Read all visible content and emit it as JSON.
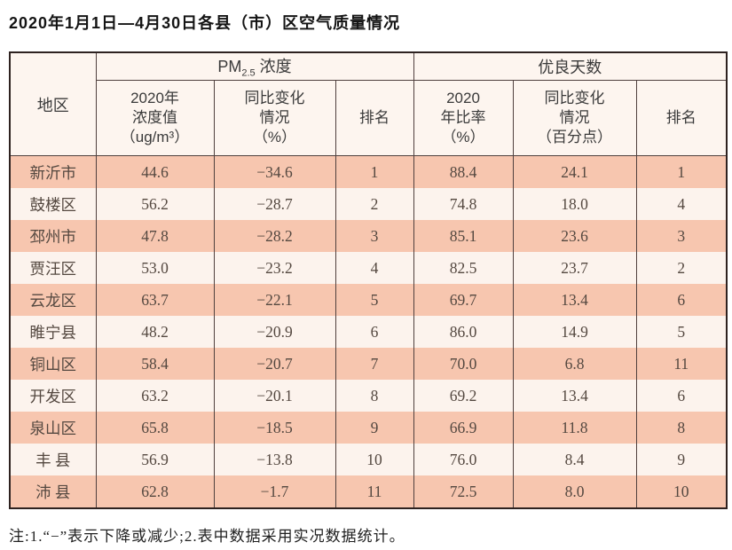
{
  "title": "2020年1月1日—4月30日各县（市）区空气质量情况",
  "table": {
    "header": {
      "region": "地区",
      "pm25": {
        "prefix": "PM",
        "sub": "2.5",
        "suffix": " 浓度"
      },
      "good_days": "优良天数",
      "pm25_value": "2020年\n浓度值\n（ug/m³）",
      "pm25_change": "同比变化\n情况\n（%）",
      "pm25_rank": "排名",
      "days_ratio": "2020\n年比率\n（%）",
      "days_change": "同比变化\n情况\n（百分点）",
      "days_rank": "排名"
    },
    "rows": [
      [
        "新沂市",
        "44.6",
        "−34.6",
        "1",
        "88.4",
        "24.1",
        "1"
      ],
      [
        "鼓楼区",
        "56.2",
        "−28.7",
        "2",
        "74.8",
        "18.0",
        "4"
      ],
      [
        "邳州市",
        "47.8",
        "−28.2",
        "3",
        "85.1",
        "23.6",
        "3"
      ],
      [
        "贾汪区",
        "53.0",
        "−23.2",
        "4",
        "82.5",
        "23.7",
        "2"
      ],
      [
        "云龙区",
        "63.7",
        "−22.1",
        "5",
        "69.7",
        "13.4",
        "6"
      ],
      [
        "睢宁县",
        "48.2",
        "−20.9",
        "6",
        "86.0",
        "14.9",
        "5"
      ],
      [
        "铜山区",
        "58.4",
        "−20.7",
        "7",
        "70.0",
        "6.8",
        "11"
      ],
      [
        "开发区",
        "63.2",
        "−20.1",
        "8",
        "69.2",
        "13.4",
        "6"
      ],
      [
        "泉山区",
        "65.8",
        "−18.5",
        "9",
        "66.9",
        "11.8",
        "8"
      ],
      [
        "丰 县",
        "56.9",
        "−13.8",
        "10",
        "76.0",
        "8.4",
        "9"
      ],
      [
        "沛 县",
        "62.8",
        "−1.7",
        "11",
        "72.5",
        "8.0",
        "10"
      ]
    ]
  },
  "note": "注:1.“−”表示下降或减少;2.表中数据采用实况数据统计。",
  "colors": {
    "row_odd": "#f7c6af",
    "row_even": "#fcf3ed",
    "header_bg": "#fdf5ef",
    "border_outer": "#2e2220",
    "border_inner": "#50403e"
  },
  "chart_data": {
    "type": "table",
    "title": "2020年1月1日—4月30日各县（市）区空气质量情况",
    "column_groups": [
      "PM2.5浓度",
      "优良天数"
    ],
    "columns": [
      "地区",
      "PM2.5 2020年浓度值(ug/m3)",
      "PM2.5 同比变化情况(%)",
      "PM2.5 排名",
      "优良天数 2020年比率(%)",
      "优良天数 同比变化情况(百分点)",
      "优良天数 排名"
    ],
    "rows": [
      [
        "新沂市",
        44.6,
        -34.6,
        1,
        88.4,
        24.1,
        1
      ],
      [
        "鼓楼区",
        56.2,
        -28.7,
        2,
        74.8,
        18.0,
        4
      ],
      [
        "邳州市",
        47.8,
        -28.2,
        3,
        85.1,
        23.6,
        3
      ],
      [
        "贾汪区",
        53.0,
        -23.2,
        4,
        82.5,
        23.7,
        2
      ],
      [
        "云龙区",
        63.7,
        -22.1,
        5,
        69.7,
        13.4,
        6
      ],
      [
        "睢宁县",
        48.2,
        -20.9,
        6,
        86.0,
        14.9,
        5
      ],
      [
        "铜山区",
        58.4,
        -20.7,
        7,
        70.0,
        6.8,
        11
      ],
      [
        "开发区",
        63.2,
        -20.1,
        8,
        69.2,
        13.4,
        6
      ],
      [
        "泉山区",
        65.8,
        -18.5,
        9,
        66.9,
        11.8,
        8
      ],
      [
        "丰县",
        56.9,
        -13.8,
        10,
        76.0,
        8.4,
        9
      ],
      [
        "沛县",
        62.8,
        -1.7,
        11,
        72.5,
        8.0,
        10
      ]
    ],
    "footnote": "注:1.“−”表示下降或减少;2.表中数据采用实况数据统计。"
  }
}
